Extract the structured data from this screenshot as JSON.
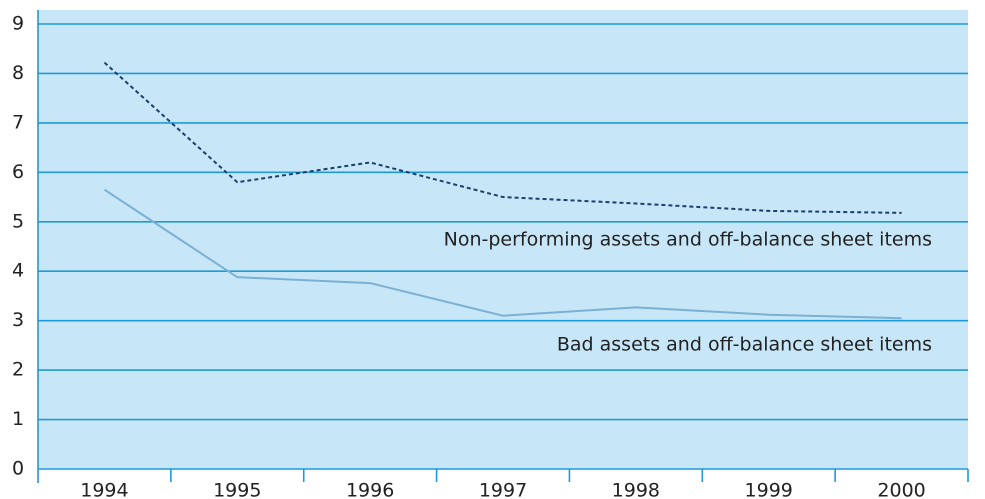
{
  "chart_data": {
    "type": "line",
    "categories": [
      "1994",
      "1995",
      "1996",
      "1997",
      "1998",
      "1999",
      "2000"
    ],
    "series": [
      {
        "name": "Non-performing assets and off-balance sheet items",
        "color": "#1c3f6e",
        "style": "dashed",
        "values": [
          8.22,
          5.8,
          6.2,
          5.5,
          5.37,
          5.22,
          5.18
        ]
      },
      {
        "name": "Bad assets and off-balance sheet items",
        "color": "#7cb0d3",
        "style": "solid",
        "values": [
          5.65,
          3.88,
          3.76,
          3.1,
          3.27,
          3.12,
          3.05
        ]
      }
    ],
    "ylim": [
      0,
      9
    ],
    "yticks": [
      0,
      1,
      2,
      3,
      4,
      5,
      6,
      7,
      8,
      9
    ],
    "grid": true,
    "background": "#c7e7f8",
    "grid_color": "#1e9ad8"
  }
}
